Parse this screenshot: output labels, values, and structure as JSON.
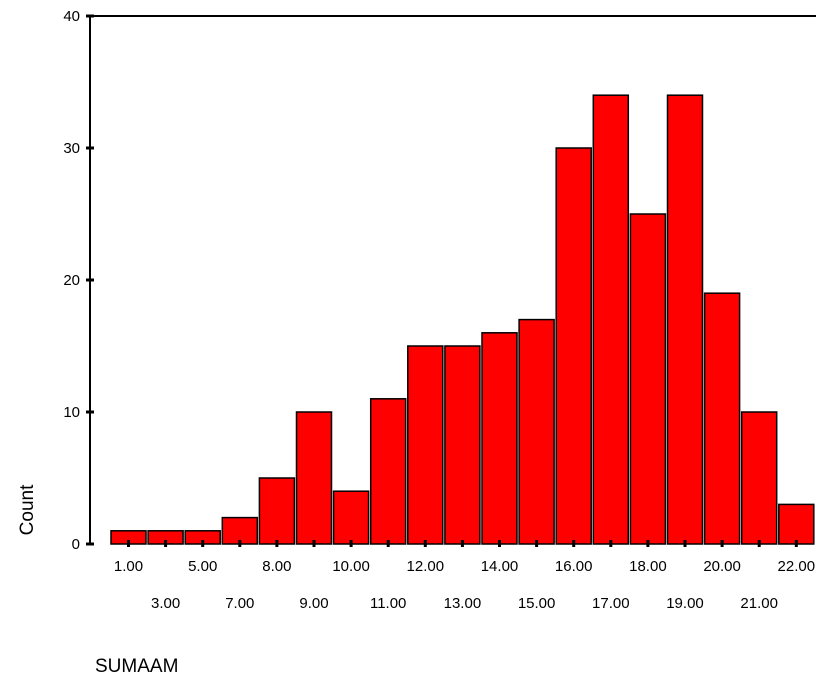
{
  "chart_data": {
    "type": "bar",
    "title": "",
    "xlabel": "SUMAAM",
    "ylabel": "Count",
    "categories": [
      "1.00",
      "3.00",
      "5.00",
      "7.00",
      "8.00",
      "9.00",
      "10.00",
      "11.00",
      "12.00",
      "13.00",
      "14.00",
      "15.00",
      "16.00",
      "17.00",
      "18.00",
      "19.00",
      "20.00",
      "21.00",
      "22.00"
    ],
    "values": [
      1,
      1,
      1,
      2,
      5,
      10,
      4,
      11,
      15,
      15,
      16,
      17,
      30,
      34,
      25,
      34,
      19,
      10,
      3
    ],
    "ylim": [
      0,
      40
    ],
    "yticks": [
      0,
      10,
      20,
      30,
      40
    ],
    "grid": false,
    "bar_color": "#ff0000",
    "bar_edge_color": "#000000"
  }
}
